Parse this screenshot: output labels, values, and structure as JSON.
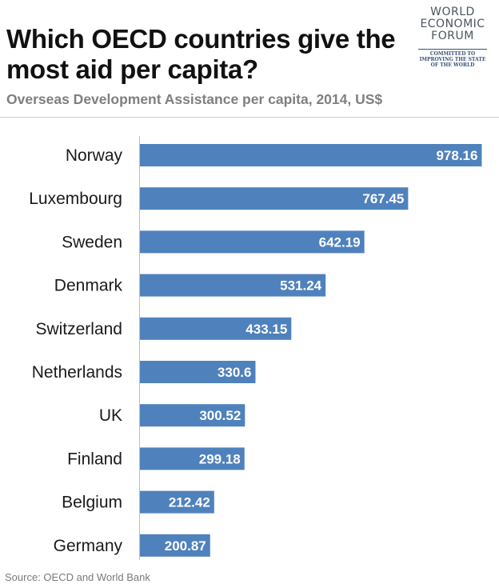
{
  "header": {
    "title": "Which OECD countries give the most aid per capita?",
    "subtitle": "Overseas Development Assistance per capita, 2014, US$"
  },
  "logo": {
    "line1": "WORLD",
    "line2": "ECONOMIC",
    "line3": "FORUM",
    "tag1": "COMMITTED TO",
    "tag2": "IMPROVING THE STATE",
    "tag3": "OF THE WORLD"
  },
  "footer": {
    "source": "Source: OECD and World Bank"
  },
  "colors": {
    "bar": "#4f81bd",
    "label": "#1a1a1a",
    "value_text": "#ffffff"
  },
  "chart_data": {
    "type": "bar",
    "orientation": "horizontal",
    "title": "Which OECD countries give the most aid per capita?",
    "subtitle": "Overseas Development Assistance per capita, 2014, US$",
    "categories": [
      "Norway",
      "Luxembourg",
      "Sweden",
      "Denmark",
      "Switzerland",
      "Netherlands",
      "UK",
      "Finland",
      "Belgium",
      "Germany"
    ],
    "values": [
      978.16,
      767.45,
      642.19,
      531.24,
      433.15,
      330.6,
      300.52,
      299.18,
      212.42,
      200.87
    ],
    "value_labels": [
      "978.16",
      "767.45",
      "642.19",
      "531.24",
      "433.15",
      "330.6",
      "300.52",
      "299.18",
      "212.42",
      "200.87"
    ],
    "xlim": [
      0,
      1000
    ],
    "grid": false,
    "legend": "none"
  }
}
